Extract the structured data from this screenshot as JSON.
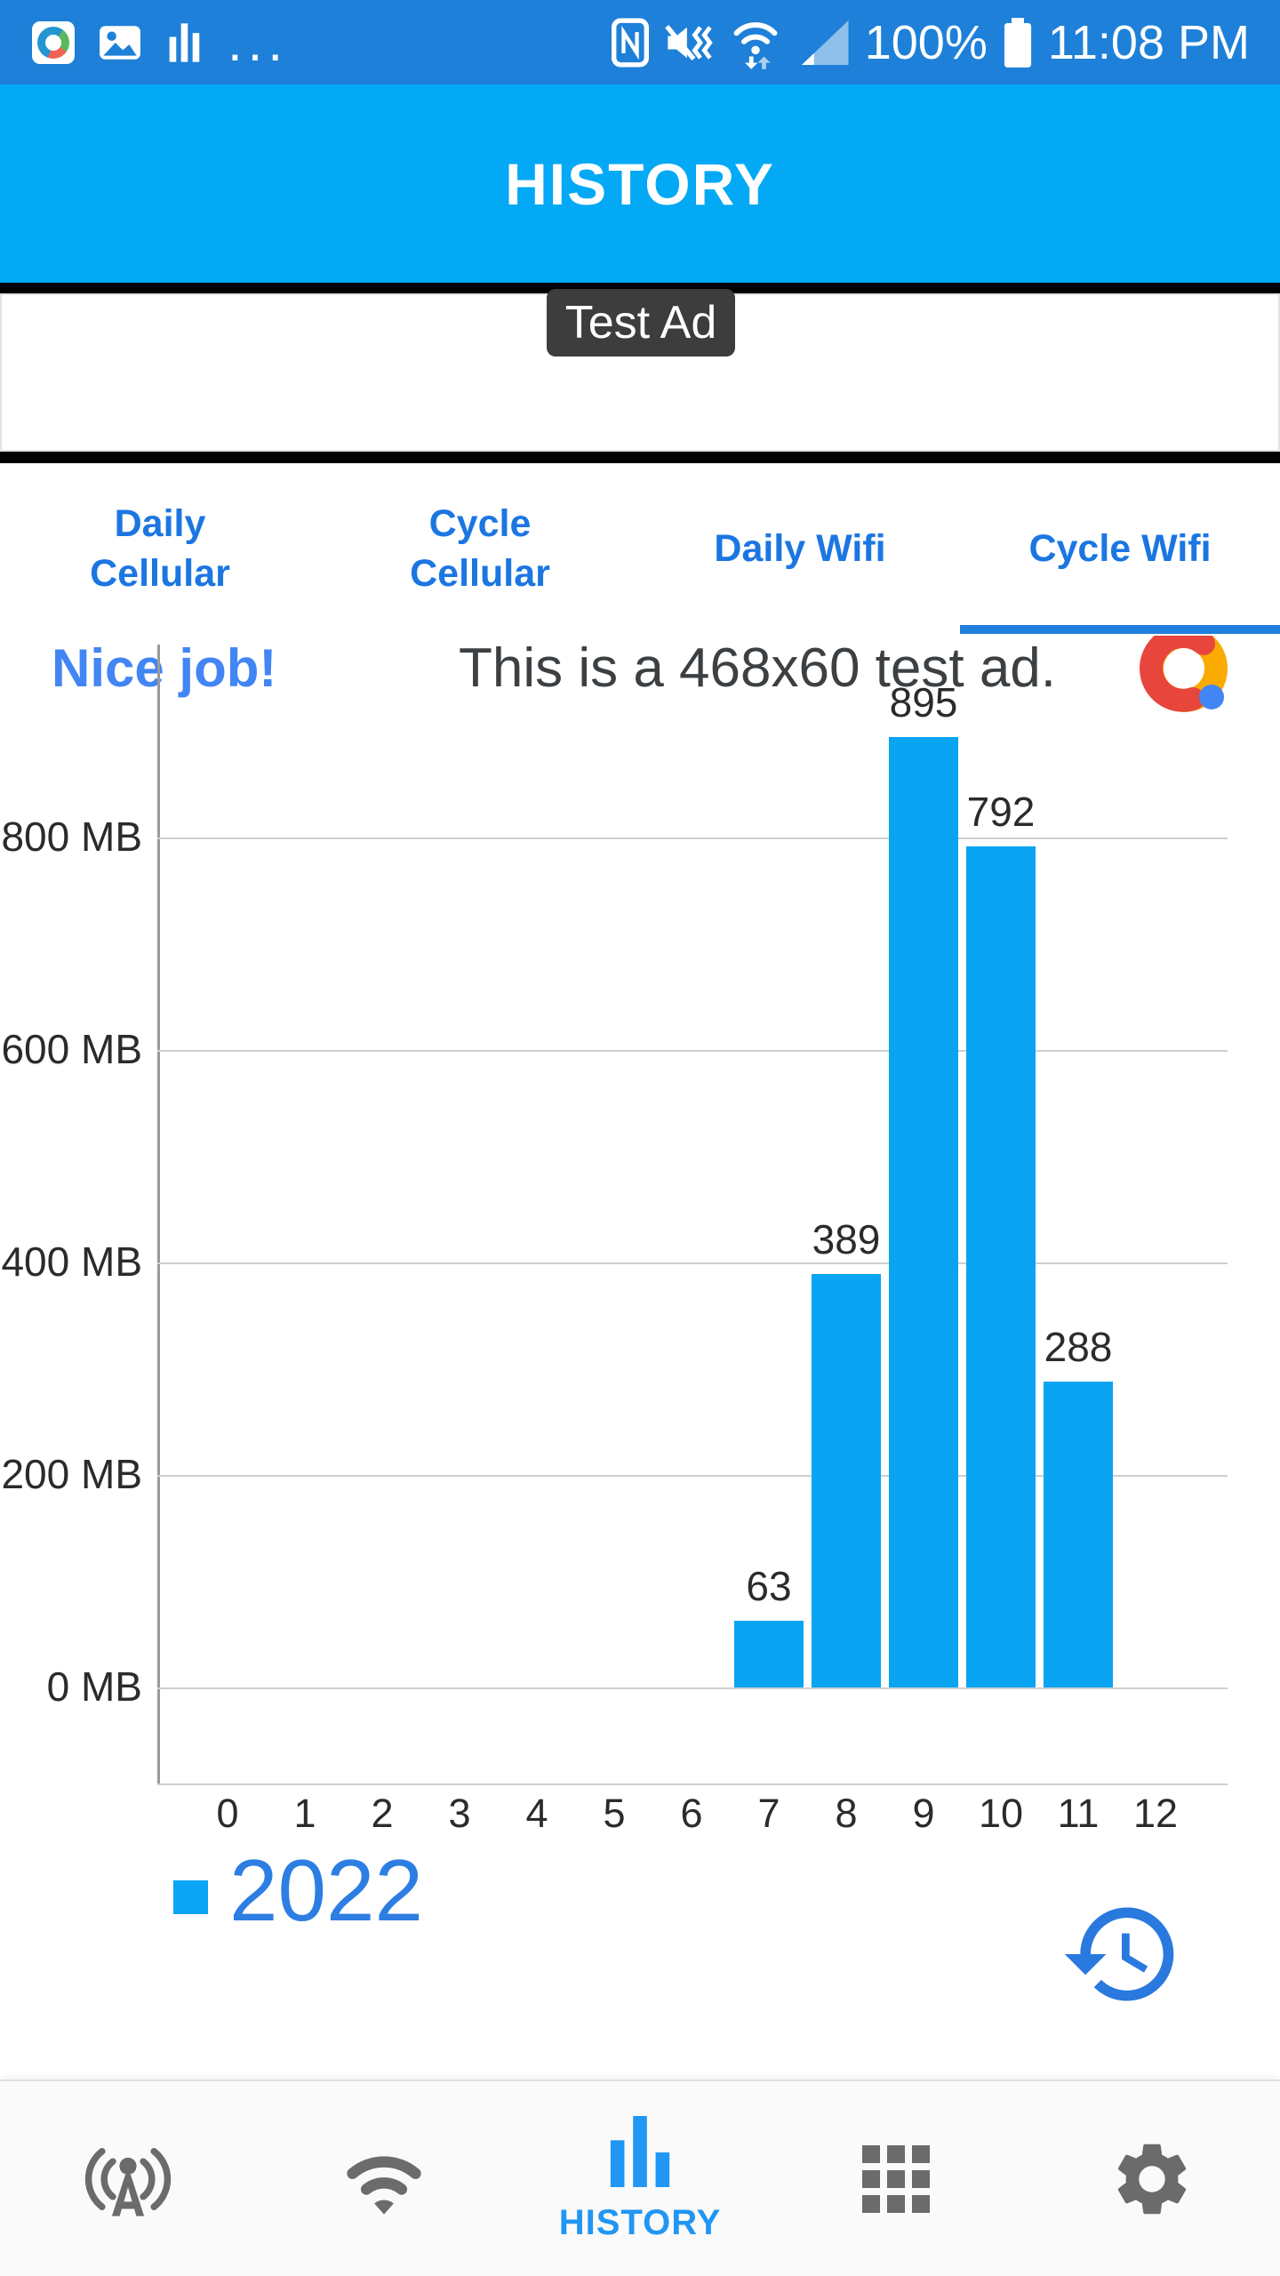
{
  "status_bar": {
    "time": "11:08 PM",
    "battery_percent": "100%",
    "more_notifications": "...",
    "bg_color": "#1E80D8"
  },
  "header": {
    "title": "HISTORY",
    "bg_color": "#03A9F4"
  },
  "ad": {
    "badge": "Test Ad",
    "headline": "Nice job!",
    "body": "This is a 468x60 test ad.",
    "headline_color": "#4285F4"
  },
  "tabs": [
    {
      "label": "Daily Cellular",
      "selected": false
    },
    {
      "label": "Cycle Cellular",
      "selected": false
    },
    {
      "label": "Daily Wifi",
      "selected": false
    },
    {
      "label": "Cycle Wifi",
      "selected": true
    }
  ],
  "chart_data": {
    "type": "bar",
    "title": "",
    "xlabel": "",
    "ylabel": "",
    "unit": "MB",
    "categories": [
      "0",
      "1",
      "2",
      "3",
      "4",
      "5",
      "6",
      "7",
      "8",
      "9",
      "10",
      "11",
      "12"
    ],
    "series": [
      {
        "name": "2022",
        "values": [
          null,
          null,
          null,
          null,
          null,
          null,
          null,
          63,
          389,
          895,
          792,
          288,
          null
        ]
      }
    ],
    "y_ticks": [
      {
        "value": 0,
        "label": "0 MB"
      },
      {
        "value": 200,
        "label": "200 MB"
      },
      {
        "value": 400,
        "label": "400 MB"
      },
      {
        "value": 600,
        "label": "600 MB"
      },
      {
        "value": 800,
        "label": "800 MB"
      }
    ],
    "ylim": [
      0,
      980
    ],
    "bar_color": "#09A4F2",
    "grid": true,
    "legend_position": "bottom-left"
  },
  "legend": {
    "year": "2022",
    "swatch_color": "#0AA5F5",
    "text_color": "#2D7EE3"
  },
  "bottom_nav": {
    "active_color": "#2196F3",
    "inactive_color": "#6B6B6B",
    "items": [
      {
        "name": "cellular",
        "label": ""
      },
      {
        "name": "wifi",
        "label": ""
      },
      {
        "name": "history",
        "label": "HISTORY",
        "selected": true
      },
      {
        "name": "apps-grid",
        "label": ""
      },
      {
        "name": "settings",
        "label": ""
      }
    ]
  }
}
